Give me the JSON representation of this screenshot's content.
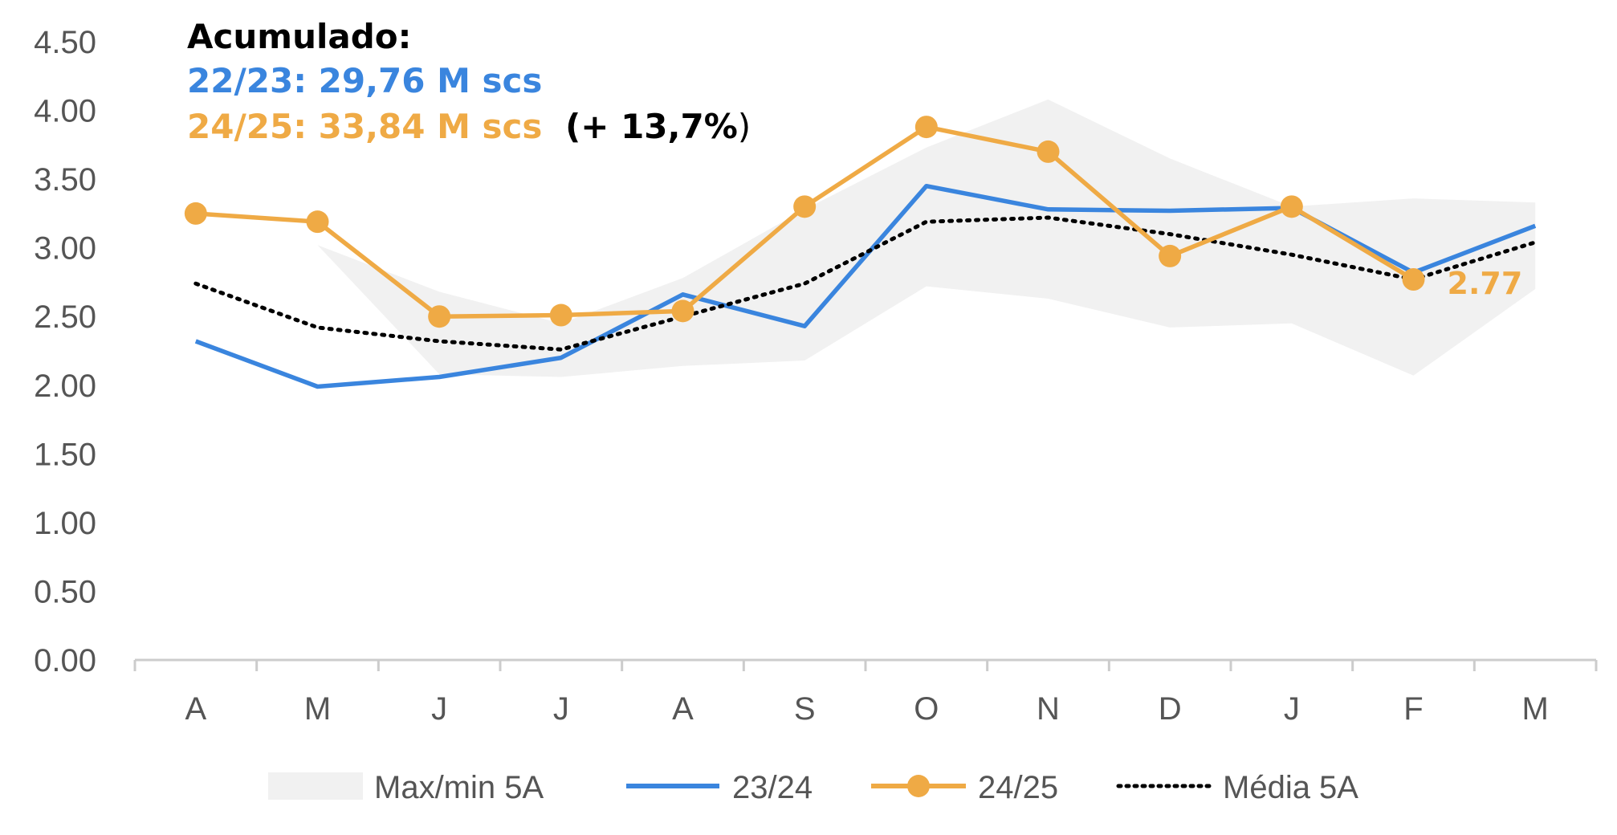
{
  "colors": {
    "band": "#f1f1f1",
    "series_2324": "#3a85de",
    "series_2425": "#efaa45",
    "media": "#000000",
    "axis": "#cccccc",
    "tick_text": "#555555",
    "accent_text": "#000000"
  },
  "annotation": {
    "title": "Acumulado:",
    "line1": "22/23: 29,76 M scs",
    "line2": "24/25: 33,84 M scs",
    "line2_pct_open": "(+ 13,7%",
    "line2_pct_close": ")"
  },
  "chart_data": {
    "type": "line",
    "title": "",
    "xlabel": "",
    "ylabel": "",
    "categories": [
      "A",
      "M",
      "J",
      "J",
      "A",
      "S",
      "O",
      "N",
      "D",
      "J",
      "F",
      "M"
    ],
    "ylim": [
      0,
      4.5
    ],
    "yticks": [
      "0.00",
      "0.50",
      "1.00",
      "1.50",
      "2.00",
      "2.50",
      "3.00",
      "3.50",
      "4.00",
      "4.50"
    ],
    "grid": false,
    "legend_position": "bottom",
    "band": {
      "name": "Max/min 5A",
      "max": [
        3.05,
        3.02,
        2.68,
        2.45,
        2.78,
        3.28,
        3.73,
        4.08,
        3.65,
        3.3,
        3.36,
        3.33
      ],
      "min": [
        3.05,
        3.02,
        2.08,
        2.06,
        2.14,
        2.18,
        2.72,
        2.63,
        2.42,
        2.45,
        2.07,
        2.7
      ]
    },
    "series": [
      {
        "name": "23/24",
        "values": [
          2.32,
          1.99,
          2.06,
          2.2,
          2.66,
          2.43,
          3.45,
          3.28,
          3.27,
          3.29,
          2.82,
          3.16
        ]
      },
      {
        "name": "24/25",
        "values": [
          3.25,
          3.19,
          2.5,
          2.51,
          2.54,
          3.3,
          3.88,
          3.7,
          2.94,
          3.3,
          2.77,
          null
        ],
        "markers": true,
        "last_label": "2.77"
      },
      {
        "name": "Média 5A",
        "values": [
          2.74,
          2.42,
          2.32,
          2.26,
          2.5,
          2.74,
          3.19,
          3.22,
          3.1,
          2.95,
          2.77,
          3.04
        ],
        "dotted": true
      }
    ]
  }
}
